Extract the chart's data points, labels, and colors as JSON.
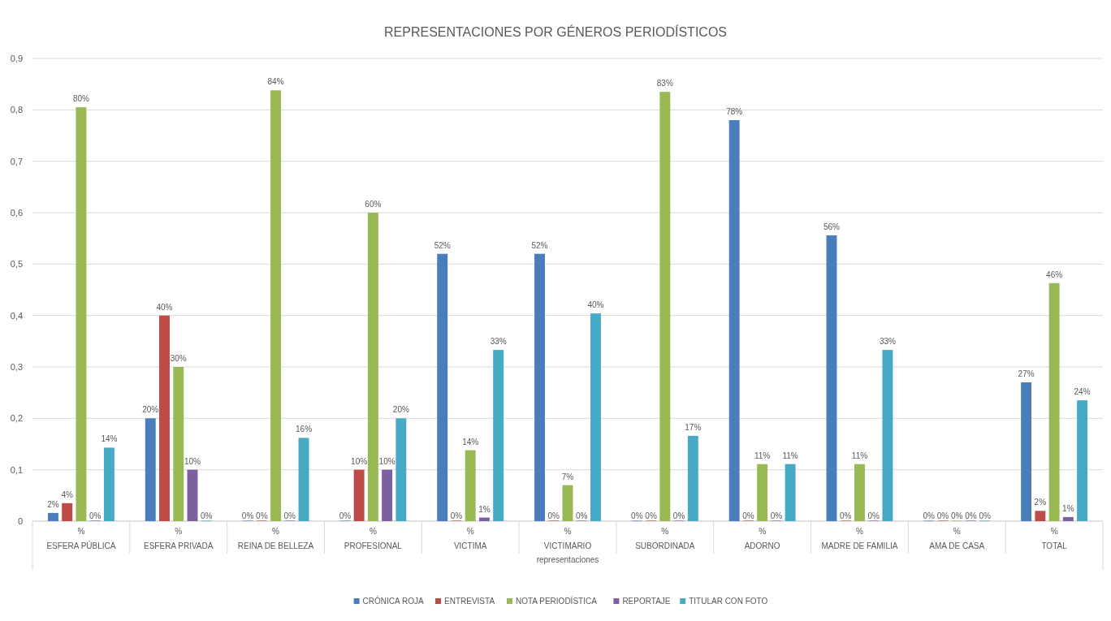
{
  "chart_data": {
    "type": "bar",
    "title": "REPRESENTACIONES POR GÉNEROS PERIODÍSTICOS",
    "xlabel": "representaciones",
    "categories": [
      "%\nESFERA PÚBLICA",
      "%\nESFERA PRIVADA",
      "%\nREINA DE BELLEZA",
      "%\nPROFESIONAL",
      "%\nVICTIMA",
      "%\nVICTIMARIO",
      "%\nSUBORDINADA",
      "%\nADORNO",
      "%\nMADRE DE FAMILIA",
      "%\nAMA DE CASA",
      "%\nTOTAL"
    ],
    "series": [
      {
        "name": "CRÓNICA ROJA",
        "color": "#4a7ebb",
        "values": [
          0.016,
          0.2,
          0,
          0,
          0.52,
          0.52,
          0,
          0.78,
          0.556,
          0,
          0.27
        ],
        "value_labels": [
          "2%",
          "20%",
          "0%",
          "0%",
          "52%",
          "52%",
          "0%",
          "78%",
          "56%",
          "0%",
          "27%"
        ]
      },
      {
        "name": "ENTREVISTA",
        "color": "#be4b48",
        "values": [
          0.035,
          0.4,
          0,
          0.1,
          0,
          0,
          0,
          0,
          0,
          0,
          0.02
        ],
        "value_labels": [
          "4%",
          "40%",
          "0%",
          "10%",
          "0%",
          "0%",
          "0%",
          "0%",
          "0%",
          "0%",
          "2%"
        ]
      },
      {
        "name": "NOTA PERIODÍSTICA",
        "color": "#98b954",
        "values": [
          0.805,
          0.3,
          0.838,
          0.6,
          0.138,
          0.07,
          0.835,
          0.111,
          0.111,
          0,
          0.463
        ],
        "value_labels": [
          "80%",
          "30%",
          "84%",
          "60%",
          "14%",
          "7%",
          "83%",
          "11%",
          "11%",
          "0%",
          "46%"
        ]
      },
      {
        "name": "REPORTAJE",
        "color": "#7d60a0",
        "values": [
          0,
          0.1,
          0,
          0.1,
          0.007,
          0,
          0,
          0,
          0,
          0,
          0.008
        ],
        "value_labels": [
          "0%",
          "10%",
          "0%",
          "10%",
          "1%",
          "0%",
          "0%",
          "0%",
          "0%",
          "0%",
          "1%"
        ]
      },
      {
        "name": "TITULAR CON FOTO",
        "color": "#46aac5",
        "values": [
          0.143,
          0,
          0.162,
          0.2,
          0.333,
          0.404,
          0.166,
          0.111,
          0.333,
          0,
          0.235
        ],
        "value_labels": [
          "14%",
          "0%",
          "16%",
          "20%",
          "33%",
          "40%",
          "17%",
          "11%",
          "33%",
          "0%",
          "24%"
        ]
      }
    ],
    "ylim": [
      0,
      0.9
    ],
    "yticks": [
      0,
      {
        "value": 0.1,
        "label": "0,1"
      },
      {
        "value": 0.2,
        "label": "0,2"
      },
      {
        "value": 0.3,
        "label": "0,3"
      },
      {
        "value": 0.4,
        "label": "0,4"
      },
      {
        "value": 0.5,
        "label": "0,5"
      },
      {
        "value": 0.6,
        "label": "0,6"
      },
      {
        "value": 0.7,
        "label": "0,7"
      },
      {
        "value": 0.8,
        "label": "0,8"
      },
      {
        "value": 0.9,
        "label": "0,9"
      }
    ],
    "grid": "y",
    "legend": "bottom"
  }
}
